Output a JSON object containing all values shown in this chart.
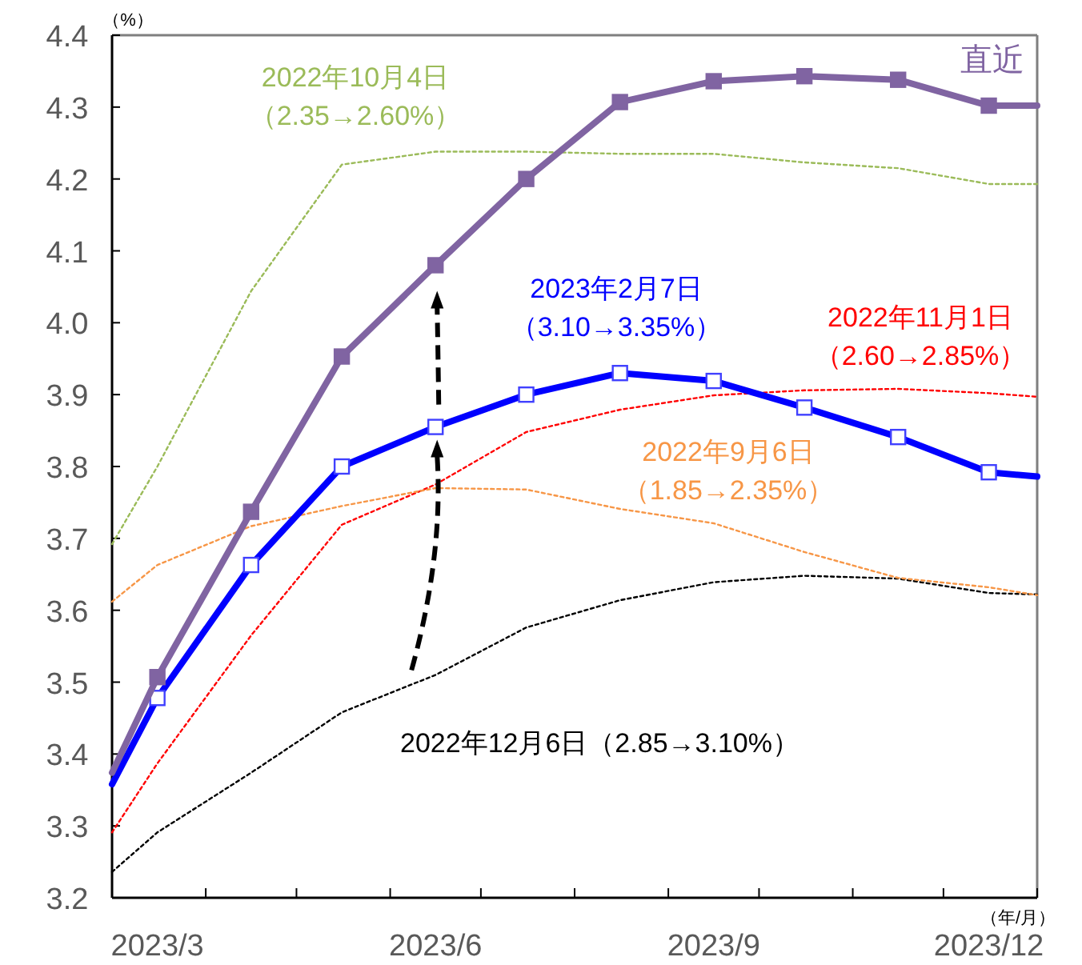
{
  "chart_data": {
    "type": "line",
    "ylabel": "（%）",
    "xlabel": "（年/月）",
    "xlim": [
      "2023-03-01",
      "2024-01-01"
    ],
    "xticks": [
      {
        "value": "2023-03-01",
        "label": null
      },
      {
        "value": "2023-03-16",
        "label": "2023/3"
      },
      {
        "value": "2023-04-01",
        "label": null
      },
      {
        "value": "2023-05-01",
        "label": null
      },
      {
        "value": "2023-06-01",
        "label": null
      },
      {
        "value": "2023-06-16",
        "label": "2023/6"
      },
      {
        "value": "2023-07-01",
        "label": null
      },
      {
        "value": "2023-08-01",
        "label": null
      },
      {
        "value": "2023-09-01",
        "label": null
      },
      {
        "value": "2023-09-16",
        "label": "2023/9"
      },
      {
        "value": "2023-10-01",
        "label": null
      },
      {
        "value": "2023-11-01",
        "label": null
      },
      {
        "value": "2023-12-01",
        "label": null
      },
      {
        "value": "2023-12-16",
        "label": "2023/12"
      },
      {
        "value": "2024-01-01",
        "label": null
      }
    ],
    "ylim": [
      3.2,
      4.4
    ],
    "yticks": [
      {
        "value": 3.2,
        "label": "3.2"
      },
      {
        "value": 3.3,
        "label": "3.3"
      },
      {
        "value": 3.4,
        "label": "3.4"
      },
      {
        "value": 3.5,
        "label": "3.5"
      },
      {
        "value": 3.6,
        "label": "3.6"
      },
      {
        "value": 3.7,
        "label": "3.7"
      },
      {
        "value": 3.8,
        "label": "3.8"
      },
      {
        "value": 3.9,
        "label": "3.9"
      },
      {
        "value": 4.0,
        "label": "4.0"
      },
      {
        "value": 4.1,
        "label": "4.1"
      },
      {
        "value": 4.2,
        "label": "4.2"
      },
      {
        "value": 4.3,
        "label": "4.3"
      },
      {
        "value": 4.4,
        "label": "4.4"
      }
    ],
    "grid": false,
    "x": [
      "2023-03-01",
      "2023-03-16",
      "2023-04-16",
      "2023-05-16",
      "2023-06-16",
      "2023-07-16",
      "2023-08-16",
      "2023-09-16",
      "2023-10-16",
      "2023-11-16",
      "2023-12-16",
      "2024-01-01"
    ],
    "series": [
      {
        "name": "直近",
        "color": "#8064a2",
        "line_style": "solid",
        "marker": "square",
        "values": [
          3.374,
          3.507,
          3.737,
          3.953,
          4.08,
          4.2,
          4.307,
          4.336,
          4.343,
          4.338,
          4.302,
          4.302
        ]
      },
      {
        "name": "2023年2月7日（3.10→3.35%）",
        "color": "#0000ff",
        "line_style": "solid",
        "marker": "square",
        "values": [
          3.358,
          3.478,
          3.663,
          3.8,
          3.855,
          3.9,
          3.93,
          3.919,
          3.882,
          3.841,
          3.792,
          3.786
        ]
      },
      {
        "name": "2022年10月4日（2.35→2.60%）",
        "color": "#9bbb59",
        "line_style": "dotted",
        "marker": "none",
        "values": [
          3.692,
          3.8,
          4.044,
          4.22,
          4.238,
          4.238,
          4.235,
          4.235,
          4.223,
          4.215,
          4.193,
          4.193
        ]
      },
      {
        "name": "2022年9月6日（1.85→2.35%）",
        "color": "#f79646",
        "line_style": "dotted",
        "marker": "none",
        "values": [
          3.612,
          3.663,
          3.717,
          3.745,
          3.77,
          3.768,
          3.741,
          3.721,
          3.681,
          3.645,
          3.632,
          3.621
        ]
      },
      {
        "name": "2022年11月1日（2.60→2.85%）",
        "color": "#ff0000",
        "line_style": "dotted",
        "marker": "none",
        "values": [
          3.291,
          3.387,
          3.565,
          3.719,
          3.775,
          3.848,
          3.879,
          3.899,
          3.906,
          3.908,
          3.902,
          3.897
        ]
      },
      {
        "name": "2022年12月6日（2.85→3.10%）",
        "color": "#000000",
        "line_style": "dotted",
        "marker": "none",
        "values": [
          3.236,
          3.291,
          3.374,
          3.458,
          3.51,
          3.576,
          3.614,
          3.639,
          3.648,
          3.644,
          3.624,
          3.622
        ]
      }
    ]
  }
}
